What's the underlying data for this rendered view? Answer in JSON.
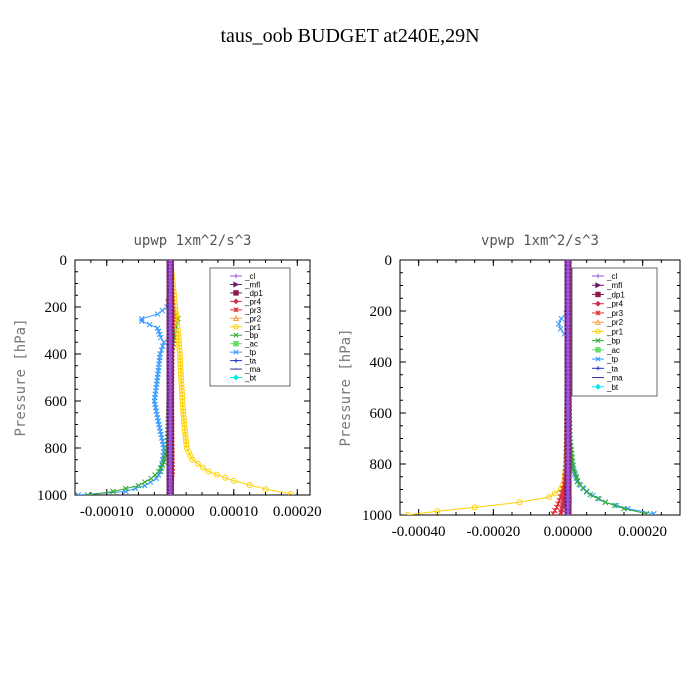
{
  "figure": {
    "suptitle": "taus_oob  BUDGET at240E,29N"
  },
  "chart_data": [
    {
      "type": "line",
      "title": "upwp  1xm^2/s^3",
      "ylabel": "Pressure [hPa]",
      "xlabel": "",
      "xlim": [
        -0.00015,
        0.00022
      ],
      "ylim": [
        1000,
        0
      ],
      "x_ticks": [
        -0.0001,
        0.0,
        0.0001,
        0.0002
      ],
      "x_tick_labels": [
        "-0.00010",
        "0.00000",
        "0.00010",
        "0.00020"
      ],
      "y_ticks": [
        0,
        200,
        400,
        600,
        800,
        1000
      ],
      "y_tick_labels": [
        "0",
        "200",
        "400",
        "600",
        "800",
        "1000"
      ],
      "legend_position": "top-right",
      "series": [
        {
          "name": "_cl",
          "color": "#9955dd",
          "marker": "+",
          "x": [
            0,
            0,
            0,
            0,
            0
          ],
          "y": [
            0,
            250,
            500,
            750,
            1000
          ]
        },
        {
          "name": "_mfl",
          "color": "#6a1b6a",
          "marker": "arrow",
          "x": [
            0,
            0,
            0,
            0,
            0
          ],
          "y": [
            0,
            250,
            500,
            750,
            1000
          ]
        },
        {
          "name": "_dp1",
          "color": "#8b1a4a",
          "marker": "square",
          "x": [
            0,
            0,
            0,
            0,
            0
          ],
          "y": [
            0,
            250,
            500,
            750,
            1000
          ]
        },
        {
          "name": "_pr4",
          "color": "#d03050",
          "marker": "diamond",
          "x": [
            0,
            0,
            0,
            0,
            0,
            0
          ],
          "y": [
            0,
            200,
            400,
            700,
            950,
            1000
          ]
        },
        {
          "name": "_pr3",
          "color": "#e03030",
          "marker": "star",
          "x": [
            0,
            4e-06,
            3e-06,
            2e-06,
            3e-06,
            1e-06,
            0
          ],
          "y": [
            0,
            240,
            280,
            600,
            900,
            970,
            1000
          ]
        },
        {
          "name": "_pr2",
          "color": "#ffa040",
          "marker": "triangle",
          "x": [
            0,
            0,
            -3e-06,
            5e-06,
            0,
            0
          ],
          "y": [
            0,
            130,
            160,
            250,
            300,
            1000
          ]
        },
        {
          "name": "_pr1",
          "color": "#ffd000",
          "marker": "circle",
          "x": [
            0,
            6e-06,
            8e-06,
            1e-05,
            1.2e-05,
            1.5e-05,
            1.7e-05,
            1.9e-05,
            2.2e-05,
            2.6e-05,
            3.5e-05,
            6e-05,
            0.0001,
            0.00015,
            0.00019
          ],
          "y": [
            0,
            150,
            210,
            250,
            300,
            400,
            500,
            600,
            700,
            800,
            850,
            900,
            940,
            975,
            995
          ]
        },
        {
          "name": "_bp",
          "color": "#33aa33",
          "marker": "x",
          "x": [
            0,
            2e-06,
            1.2e-05,
            8e-06,
            2e-06,
            -2e-06,
            -5e-06,
            -1e-05,
            -1.8e-05,
            -3e-05,
            -5e-05,
            -9e-05,
            -0.00013
          ],
          "y": [
            0,
            200,
            250,
            300,
            400,
            600,
            800,
            860,
            900,
            930,
            960,
            985,
            1000
          ]
        },
        {
          "name": "_ac",
          "color": "#66dd66",
          "marker": "square",
          "x": [
            0,
            0,
            0,
            0
          ],
          "y": [
            0,
            300,
            700,
            1000
          ]
        },
        {
          "name": "_tp",
          "color": "#3399ff",
          "marker": "x",
          "x": [
            0,
            0,
            -5e-06,
            -2e-05,
            -4.5e-05,
            -4.5e-05,
            -2e-05,
            -1.5e-05,
            -1e-05,
            -1.6e-05,
            -2e-05,
            -2.5e-05,
            -1.8e-05,
            -1e-05,
            -1.2e-05,
            -1.5e-05,
            -2.2e-05,
            -4e-05,
            -7e-05,
            -0.000145
          ],
          "y": [
            0,
            150,
            200,
            230,
            250,
            260,
            290,
            330,
            350,
            400,
            500,
            600,
            700,
            800,
            850,
            900,
            930,
            960,
            985,
            1000
          ]
        },
        {
          "name": "_ta",
          "color": "#2233cc",
          "marker": "+",
          "x": [
            0,
            0,
            0,
            0
          ],
          "y": [
            0,
            300,
            700,
            1000
          ]
        },
        {
          "name": "_ma",
          "color": "#333399",
          "marker": "dash",
          "x": [
            0,
            0,
            0,
            0
          ],
          "y": [
            0,
            300,
            700,
            1000
          ]
        },
        {
          "name": "_bt",
          "color": "#00e5ee",
          "marker": "diamond",
          "x": [
            0,
            0,
            0,
            0
          ],
          "y": [
            0,
            300,
            700,
            1000
          ]
        }
      ]
    },
    {
      "type": "line",
      "title": "vpwp  1xm^2/s^3",
      "ylabel": "Pressure [hPa]",
      "xlabel": "",
      "xlim": [
        -0.00045,
        0.0003
      ],
      "ylim": [
        1000,
        0
      ],
      "x_ticks": [
        -0.0004,
        -0.0002,
        0.0,
        0.0002
      ],
      "x_tick_labels": [
        "-0.00040",
        "-0.00020",
        "0.00000",
        "0.00020"
      ],
      "y_ticks": [
        0,
        200,
        400,
        600,
        800,
        1000
      ],
      "y_tick_labels": [
        "0",
        "200",
        "400",
        "600",
        "800",
        "1000"
      ],
      "legend_position": "top-right",
      "series": [
        {
          "name": "_cl",
          "color": "#9955dd",
          "marker": "+",
          "x": [
            0,
            0,
            0,
            0,
            0
          ],
          "y": [
            0,
            250,
            500,
            750,
            1000
          ]
        },
        {
          "name": "_mfl",
          "color": "#6a1b6a",
          "marker": "arrow",
          "x": [
            0,
            0,
            0,
            0,
            0
          ],
          "y": [
            0,
            250,
            500,
            750,
            1000
          ]
        },
        {
          "name": "_dp1",
          "color": "#8b1a4a",
          "marker": "square",
          "x": [
            0,
            0,
            0,
            0,
            0
          ],
          "y": [
            0,
            250,
            500,
            750,
            1000
          ]
        },
        {
          "name": "_pr4",
          "color": "#d03050",
          "marker": "diamond",
          "x": [
            0,
            0,
            0,
            -5e-06,
            -1e-05,
            -1.5e-05,
            -2e-05
          ],
          "y": [
            0,
            300,
            800,
            880,
            930,
            970,
            1000
          ]
        },
        {
          "name": "_pr3",
          "color": "#e03030",
          "marker": "star",
          "x": [
            0,
            0,
            -5e-06,
            -1e-05,
            -2e-05,
            -3e-05,
            -4e-05
          ],
          "y": [
            0,
            300,
            800,
            880,
            930,
            970,
            995
          ]
        },
        {
          "name": "_pr2",
          "color": "#ffa040",
          "marker": "triangle",
          "x": [
            0,
            0,
            4e-06,
            0,
            0
          ],
          "y": [
            0,
            130,
            160,
            200,
            1000
          ]
        },
        {
          "name": "_pr1",
          "color": "#ffd000",
          "marker": "circle",
          "x": [
            0,
            0,
            -5e-06,
            -1e-05,
            -2e-05,
            -5e-05,
            -0.00013,
            -0.00025,
            -0.00035,
            -0.00043
          ],
          "y": [
            0,
            600,
            800,
            870,
            900,
            930,
            950,
            970,
            985,
            1000
          ]
        },
        {
          "name": "_bp",
          "color": "#33aa33",
          "marker": "x",
          "x": [
            0,
            0,
            5e-06,
            1.5e-05,
            3e-05,
            6e-05,
            0.0001,
            0.00015,
            0.00021
          ],
          "y": [
            0,
            300,
            700,
            820,
            880,
            920,
            950,
            975,
            995
          ]
        },
        {
          "name": "_ac",
          "color": "#66dd66",
          "marker": "square",
          "x": [
            0,
            0,
            0,
            0
          ],
          "y": [
            0,
            300,
            700,
            1000
          ]
        },
        {
          "name": "_tp",
          "color": "#3399ff",
          "marker": "x",
          "x": [
            0,
            0,
            -5e-06,
            -1.8e-05,
            -2.5e-05,
            -2e-05,
            -1e-05,
            0,
            5e-06,
            1e-05,
            2.5e-05,
            5e-05,
            0.0001,
            0.00016,
            0.00023
          ],
          "y": [
            0,
            180,
            210,
            230,
            250,
            270,
            290,
            300,
            700,
            800,
            870,
            910,
            950,
            975,
            995
          ]
        },
        {
          "name": "_ta",
          "color": "#2233cc",
          "marker": "+",
          "x": [
            0,
            0,
            0,
            0
          ],
          "y": [
            0,
            300,
            700,
            1000
          ]
        },
        {
          "name": "_ma",
          "color": "#333399",
          "marker": "dash",
          "x": [
            0,
            0,
            0,
            0
          ],
          "y": [
            0,
            300,
            700,
            1000
          ]
        },
        {
          "name": "_bt",
          "color": "#00e5ee",
          "marker": "diamond",
          "x": [
            0,
            0,
            0,
            0
          ],
          "y": [
            0,
            300,
            700,
            1000
          ]
        }
      ]
    }
  ]
}
